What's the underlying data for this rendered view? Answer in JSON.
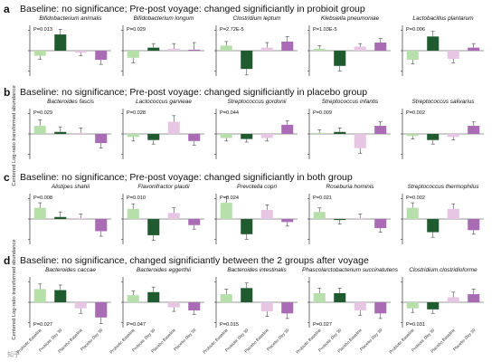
{
  "figure": {
    "y_axis_label": "Centered Log-ratio transformed abundance",
    "watermark": "知乎"
  },
  "colors": {
    "probiotic_baseline": "#b7dfaa",
    "probiotic_day30": "#1f5b2e",
    "placebo_baseline": "#e7c6e4",
    "placebo_day30": "#a86bb4",
    "axis": "#333333"
  },
  "chart_data": {
    "type": "bar",
    "categories": [
      "Probiotic Baseline",
      "Probiotic Day 30",
      "Placebo Baseline",
      "Placebo Day 30"
    ],
    "rows": [
      {
        "label": "a",
        "header": "Baseline: no significance; Pre-post voyage: changed significiantly in probioit group",
        "panels": [
          {
            "title": "Bifidobacterium animalis",
            "p": "P=0.013",
            "values": [
              -0.5,
              1.6,
              -0.2,
              -0.9
            ],
            "errors": [
              0.35,
              0.5,
              0.3,
              0.45
            ]
          },
          {
            "title": "Bifidobacterium longum",
            "p": "P=0.029",
            "values": [
              -0.7,
              0.3,
              0.2,
              0.1
            ],
            "errors": [
              0.5,
              0.4,
              0.5,
              0.7
            ]
          },
          {
            "title": "Clostridium leptum",
            "p": "P=2.72E-5",
            "values": [
              0.5,
              -1.8,
              0.3,
              0.9
            ],
            "errors": [
              0.4,
              0.6,
              0.5,
              0.5
            ]
          },
          {
            "title": "Klebsiella pneumoniae",
            "p": "P=1.03E-5",
            "values": [
              0.2,
              -1.5,
              0.4,
              0.8
            ],
            "errors": [
              0.3,
              0.5,
              0.3,
              0.4
            ]
          },
          {
            "title": "Lactobacillus plantarum",
            "p": "P=0.006",
            "values": [
              -0.9,
              1.4,
              -0.8,
              0.3
            ],
            "errors": [
              0.4,
              0.5,
              0.4,
              0.4
            ]
          }
        ]
      },
      {
        "label": "b",
        "header": "Baseline: no significance; Pre-post voyage: changed significiantly in placebo group",
        "panels": [
          {
            "title": "Bacteroides fascis",
            "p": "P=0.029",
            "values": [
              0.8,
              0.2,
              0.1,
              -0.9
            ],
            "errors": [
              0.6,
              0.5,
              0.5,
              0.5
            ]
          },
          {
            "title": "Lactococcus garvieae",
            "p": "P=0.028",
            "values": [
              -0.3,
              -0.6,
              1.2,
              -0.7
            ],
            "errors": [
              0.4,
              0.4,
              0.6,
              0.4
            ]
          },
          {
            "title": "Streptococcus gordonii",
            "p": "P=0.044",
            "values": [
              -0.4,
              -0.5,
              -0.4,
              0.9
            ],
            "errors": [
              0.3,
              0.3,
              0.3,
              0.4
            ]
          },
          {
            "title": "Streptococcus infantis",
            "p": "P=0.009",
            "values": [
              0.1,
              0.2,
              -1.4,
              0.8
            ],
            "errors": [
              0.3,
              0.4,
              0.5,
              0.4
            ]
          },
          {
            "title": "Streptococcus salivarius",
            "p": "P=0.002",
            "values": [
              -0.2,
              -0.6,
              -0.3,
              0.8
            ],
            "errors": [
              0.3,
              0.4,
              0.3,
              0.4
            ]
          }
        ]
      },
      {
        "label": "c",
        "header": "Baseline: no significance; Pre-post voyage: changed significiantly in both group",
        "panels": [
          {
            "title": "Alistipes shahii",
            "p": "P=0.008",
            "values": [
              1.1,
              0.2,
              0.1,
              -1.2
            ],
            "errors": [
              0.5,
              0.5,
              0.4,
              0.5
            ]
          },
          {
            "title": "Flavonifractor plautii",
            "p": "P=0.010",
            "values": [
              1.0,
              -1.6,
              0.6,
              -0.6
            ],
            "errors": [
              0.5,
              0.5,
              0.5,
              0.4
            ]
          },
          {
            "title": "Prevotella copri",
            "p": "P=0.024",
            "values": [
              1.6,
              -1.5,
              0.9,
              -0.3
            ],
            "errors": [
              0.6,
              0.5,
              0.5,
              0.4
            ]
          },
          {
            "title": "Roseburia hominis",
            "p": "P=0.021",
            "values": [
              0.7,
              -0.1,
              0.1,
              -0.9
            ],
            "errors": [
              0.4,
              0.4,
              0.4,
              0.4
            ]
          },
          {
            "title": "Streptococcus thermophilus",
            "p": "P=0.002",
            "values": [
              1.1,
              -1.3,
              1.0,
              -1.1
            ],
            "errors": [
              0.5,
              0.5,
              0.5,
              0.4
            ]
          }
        ]
      },
      {
        "label": "d",
        "header": "Baseline: no significance, changed significiantly between the 2 groups after voyage",
        "panels": [
          {
            "title": "Bacteroides caccae",
            "p": "P=0.027",
            "values": [
              1.3,
              1.2,
              -0.6,
              -1.5
            ],
            "errors": [
              0.5,
              0.5,
              0.5,
              0.6
            ]
          },
          {
            "title": "Bacteroides eggerthii",
            "p": "P=0.047",
            "values": [
              0.7,
              1.0,
              -0.5,
              -0.8
            ],
            "errors": [
              0.4,
              0.5,
              0.4,
              0.4
            ]
          },
          {
            "title": "Bacteroides intestinalis",
            "p": "P=0.015",
            "values": [
              0.8,
              1.4,
              -0.9,
              -1.1
            ],
            "errors": [
              0.5,
              0.5,
              0.5,
              0.5
            ]
          },
          {
            "title": "Phascolarctobacterium succinatutens",
            "p": "P=0.027",
            "values": [
              0.9,
              0.9,
              -0.8,
              -1.1
            ],
            "errors": [
              0.5,
              0.5,
              0.5,
              0.5
            ]
          },
          {
            "title": "Clostridium clostridioforme",
            "p": "P=0.031",
            "values": [
              -0.6,
              -0.7,
              0.5,
              0.8
            ],
            "errors": [
              0.4,
              0.4,
              0.5,
              0.5
            ]
          }
        ]
      }
    ]
  }
}
